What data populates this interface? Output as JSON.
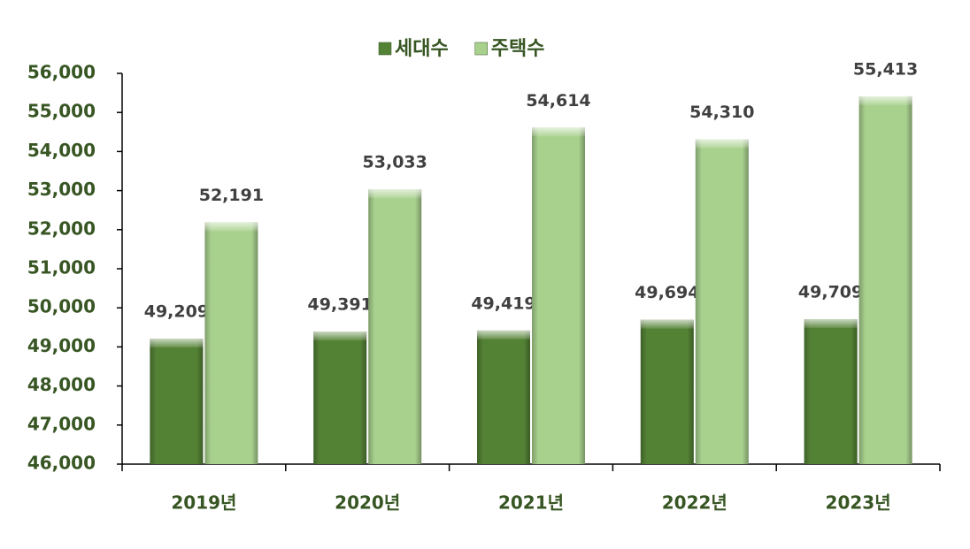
{
  "chart_data": {
    "type": "bar",
    "categories": [
      "2019년",
      "2020년",
      "2021년",
      "2022년",
      "2023년"
    ],
    "series": [
      {
        "name": "세대수",
        "color": "#548235",
        "values": [
          49209,
          49391,
          49419,
          49694,
          49709
        ],
        "value_labels": [
          "49,209",
          "49,391",
          "49,419",
          "49,694",
          "49,709"
        ]
      },
      {
        "name": "주택수",
        "color": "#a9d18e",
        "values": [
          52191,
          53033,
          54614,
          54310,
          55413
        ],
        "value_labels": [
          "52,191",
          "53,033",
          "54,614",
          "54,310",
          "55,413"
        ]
      }
    ],
    "ylim": [
      46000,
      56000
    ],
    "yticks": [
      {
        "value": 46000,
        "label": "46,000"
      },
      {
        "value": 47000,
        "label": "47,000"
      },
      {
        "value": 48000,
        "label": "48,000"
      },
      {
        "value": 49000,
        "label": "49,000"
      },
      {
        "value": 50000,
        "label": "50,000"
      },
      {
        "value": 51000,
        "label": "51,000"
      },
      {
        "value": 52000,
        "label": "52,000"
      },
      {
        "value": 53000,
        "label": "53,000"
      },
      {
        "value": 54000,
        "label": "54,000"
      },
      {
        "value": 55000,
        "label": "55,000"
      },
      {
        "value": 56000,
        "label": "56,000"
      }
    ],
    "legend": "top"
  }
}
